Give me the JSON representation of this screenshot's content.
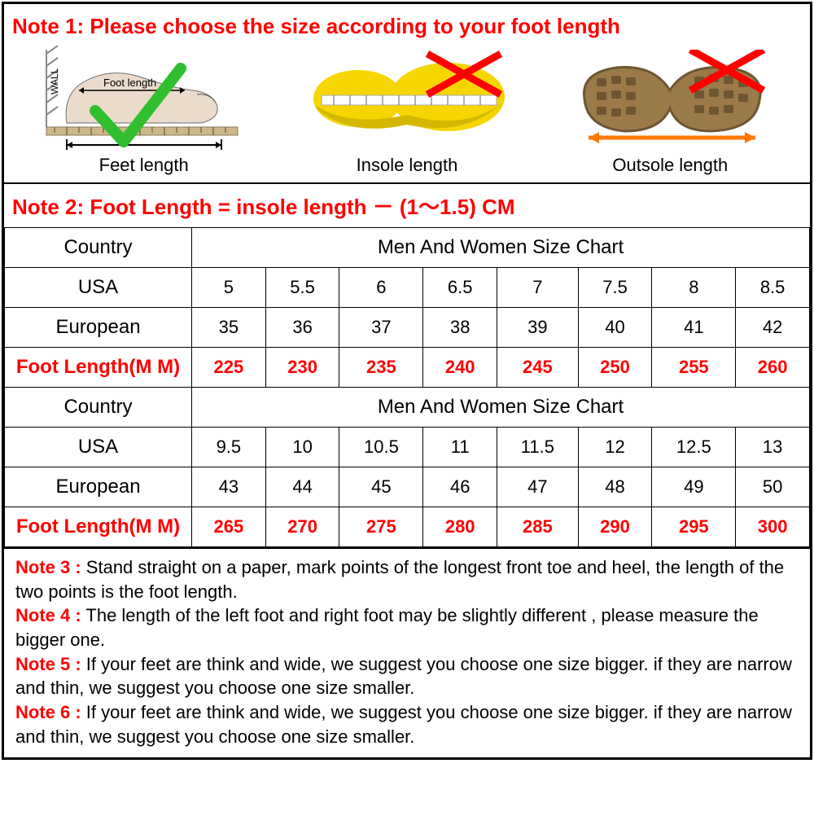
{
  "colors": {
    "red": "#ff0000",
    "black": "#000000",
    "green_check": "#2fbf2f",
    "insole_yellow": "#f5d600",
    "insole_shadow": "#d4b800",
    "outsole_brown": "#9b7a4a",
    "outsole_dark": "#6e5632",
    "wall_hatch": "#888888",
    "ruler": "#cdb68a",
    "foot_skin": "#e8d5c4",
    "arrow_orange": "#ff7a00"
  },
  "note1": "Note 1: Please choose the size according to your foot length",
  "diagrams": {
    "feet": {
      "label": "Feet length",
      "foot_text": "Foot length",
      "wall_text": "WALL"
    },
    "insole": {
      "label": "Insole length"
    },
    "outsole": {
      "label": "Outsole length"
    }
  },
  "note2": "Note 2: Foot Length = insole length － (1～1.5) CM",
  "table": {
    "row_labels": {
      "country": "Country",
      "usa": "USA",
      "european": "European",
      "foot": "Foot Length(M M)"
    },
    "chart_header": "Men And Women Size Chart",
    "block1": {
      "usa": [
        "5",
        "5.5",
        "6",
        "6.5",
        "7",
        "7.5",
        "8",
        "8.5"
      ],
      "european": [
        "35",
        "36",
        "37",
        "38",
        "39",
        "40",
        "41",
        "42"
      ],
      "foot": [
        "225",
        "230",
        "235",
        "240",
        "245",
        "250",
        "255",
        "260"
      ]
    },
    "block2": {
      "usa": [
        "9.5",
        "10",
        "10.5",
        "11",
        "11.5",
        "12",
        "12.5",
        "13"
      ],
      "european": [
        "43",
        "44",
        "45",
        "46",
        "47",
        "48",
        "49",
        "50"
      ],
      "foot": [
        "265",
        "270",
        "275",
        "280",
        "285",
        "290",
        "295",
        "300"
      ]
    }
  },
  "notes": {
    "n3_label": "Note 3 :",
    "n3_text": " Stand straight on a paper, mark points of the longest front toe and heel, the length of the two points is the foot length.",
    "n4_label": "Note 4 :",
    "n4_text": " The length of the left foot and right foot may be slightly different , please measure the bigger one.",
    "n5_label": "Note 5 :",
    "n5_text": " If your feet are think and wide, we suggest you choose one size bigger. if they are narrow and thin, we suggest you choose one size smaller.",
    "n6_label": "Note 6 :",
    "n6_text": " If your feet are think and wide, we suggest you choose one size bigger. if they are narrow and thin, we suggest you choose one size smaller."
  }
}
